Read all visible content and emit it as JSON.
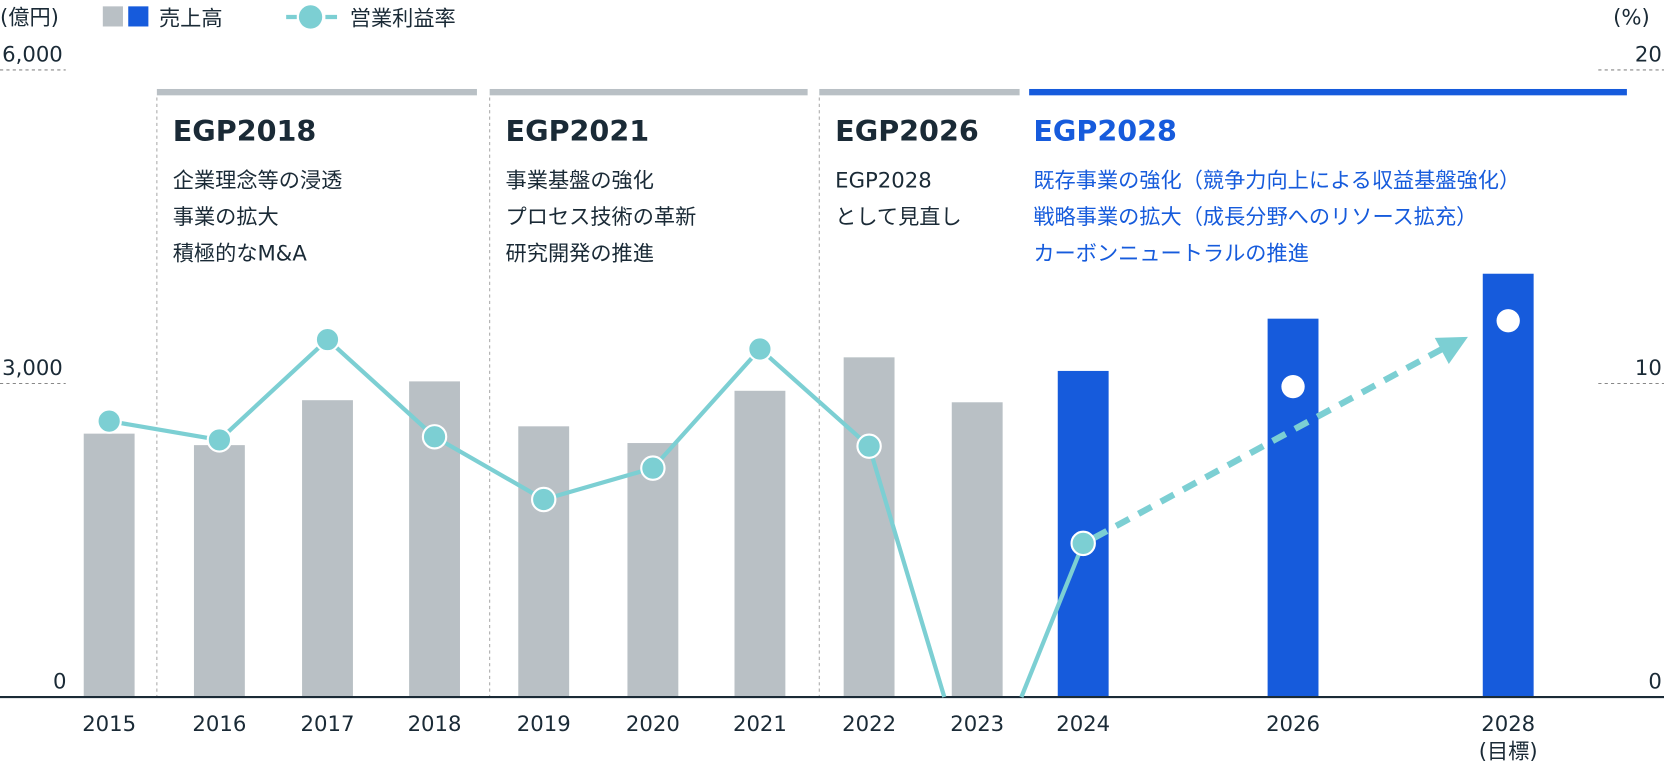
{
  "chart_data": {
    "type": "bar+line",
    "title": "",
    "legend": {
      "left_unit": "(億円)",
      "right_unit": "(%)",
      "bar_label": "売上高",
      "line_label": "営業利益率",
      "placement": "top-left"
    },
    "categories": [
      "2015",
      "2016",
      "2017",
      "2018",
      "2019",
      "2020",
      "2021",
      "2022",
      "2023",
      "2024",
      "2026",
      "2028"
    ],
    "category_sublabels": {
      "2028": "(目標)"
    },
    "series": [
      {
        "name": "売上高",
        "type": "bar",
        "axis": "left",
        "values": [
          2520,
          2410,
          2840,
          3020,
          2590,
          2430,
          2930,
          3250,
          2820,
          3120,
          3620,
          4050
        ],
        "colors": [
          "#b9c0c5",
          "#b9c0c5",
          "#b9c0c5",
          "#b9c0c5",
          "#b9c0c5",
          "#b9c0c5",
          "#b9c0c5",
          "#b9c0c5",
          "#b9c0c5",
          "#165bdc",
          "#165bdc",
          "#165bdc"
        ]
      },
      {
        "name": "営業利益率",
        "type": "line",
        "axis": "right",
        "values": [
          8.8,
          8.2,
          11.4,
          8.3,
          6.3,
          7.3,
          11.1,
          8.0,
          -3.5,
          4.9,
          9.9,
          12.0
        ],
        "color": "#7ccfd3",
        "target_points": [
          "2026",
          "2028"
        ],
        "target_arrow": {
          "from": "2024",
          "to": "2028",
          "style": "dashed"
        }
      }
    ],
    "y_left": {
      "range": [
        0,
        6000
      ],
      "ticks": [
        "0",
        "3,000",
        "6,000"
      ]
    },
    "y_right": {
      "range": [
        0,
        20
      ],
      "ticks": [
        "0",
        "10",
        "20"
      ]
    },
    "periods": [
      {
        "name": "EGP2018",
        "from": "2016",
        "to": "2018",
        "color": "#b9c0c5",
        "name_color": "#1a2a36",
        "lines": [
          "企業理念等の浸透",
          "事業の拡大",
          "積極的なM&A"
        ]
      },
      {
        "name": "EGP2021",
        "from": "2019",
        "to": "2021",
        "color": "#b9c0c5",
        "name_color": "#1a2a36",
        "lines": [
          "事業基盤の強化",
          "プロセス技術の革新",
          "研究開発の推進"
        ]
      },
      {
        "name": "EGP2026",
        "from": "2022",
        "to": "2023",
        "color": "#b9c0c5",
        "name_color": "#1a2a36",
        "lines": [
          "EGP2028",
          "として見直し"
        ]
      },
      {
        "name": "EGP2028",
        "from": "2024",
        "to": "2028",
        "color": "#165bdc",
        "name_color": "#165bdc",
        "lines": [
          "既存事業の強化（競争力向上による収益基盤強化）",
          "戦略事業の拡大（成長分野へのリソース拡充）",
          "カーボンニュートラルの推進"
        ]
      }
    ]
  }
}
